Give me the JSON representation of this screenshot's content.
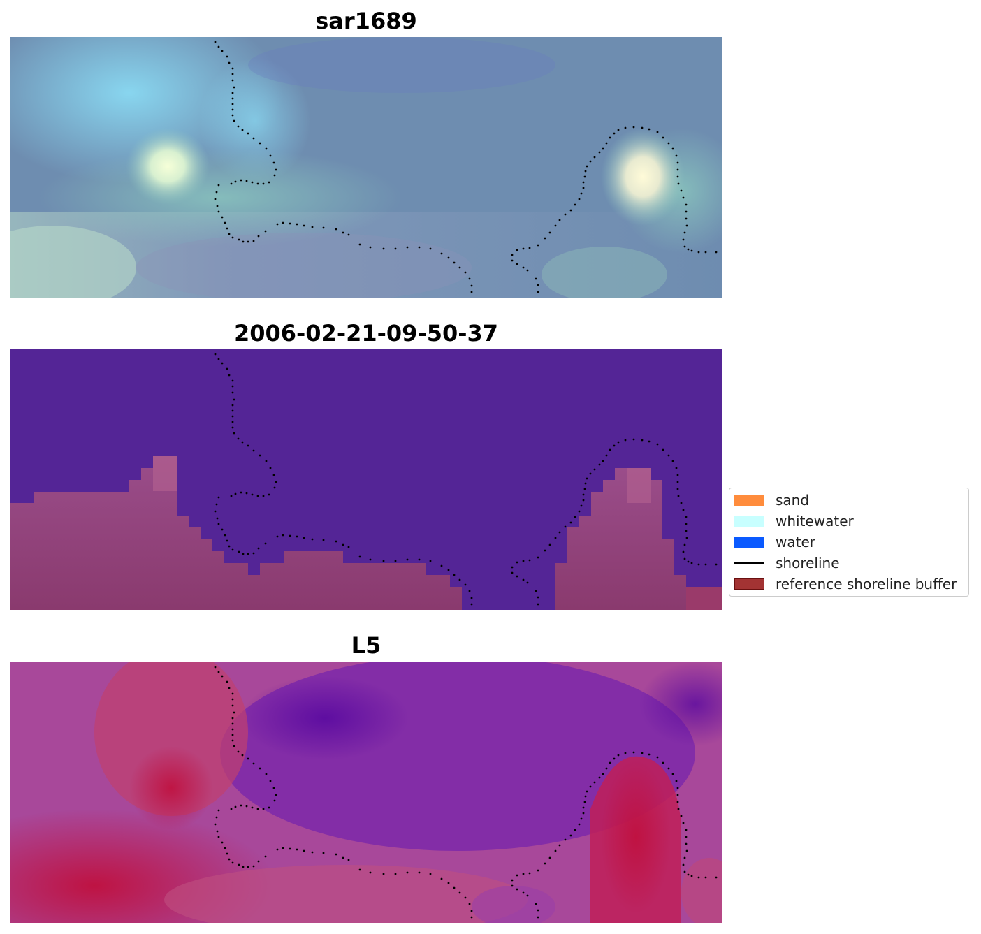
{
  "panels": [
    {
      "title": "sar1689"
    },
    {
      "title": "2006-02-21-09-50-37"
    },
    {
      "title": "L5"
    }
  ],
  "legend": {
    "items": [
      {
        "label": "sand",
        "color": "#ff8c3c"
      },
      {
        "label": "whitewater",
        "color": "#c8ffff"
      },
      {
        "label": "water",
        "color": "#0a5aff"
      },
      {
        "label": "shoreline",
        "color": "#000000"
      },
      {
        "label": "reference shoreline buffer",
        "color": "#a33333"
      }
    ]
  },
  "colors": {
    "rgb_base": "#6f8fb0",
    "water_class": "#542596",
    "buffer_overlay": "#a33a6a",
    "index_water": "#7b2fa8",
    "index_land": "#c8184a"
  }
}
